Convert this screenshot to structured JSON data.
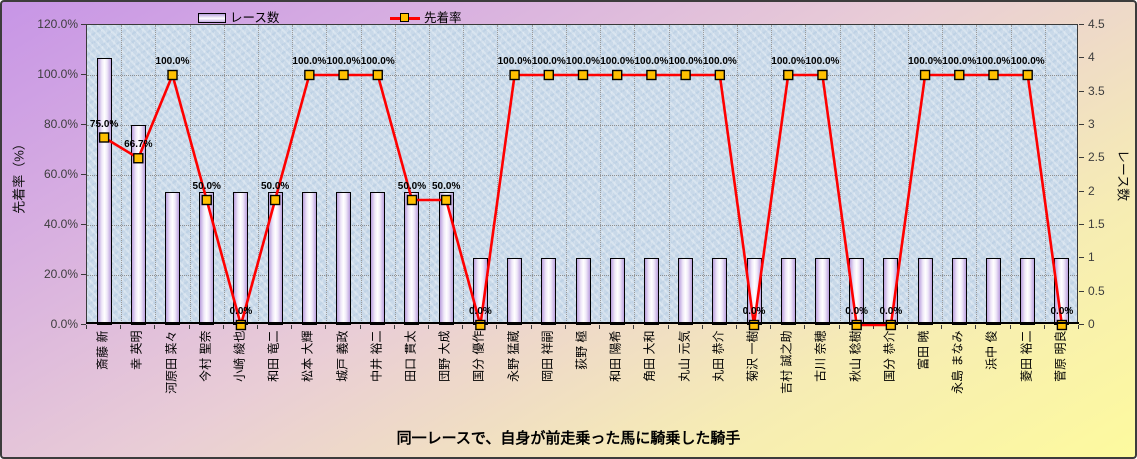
{
  "title": "同一レースで、自身が前走乗った馬に騎乗した騎手",
  "legend": {
    "races_label": "レース数",
    "rate_label": "先着率"
  },
  "axes": {
    "left_title": "先着率（%）",
    "right_title": "レース数",
    "left_ticks": [
      "120.0%",
      "100.0%",
      "80.0%",
      "60.0%",
      "40.0%",
      "20.0%",
      "0.0%"
    ],
    "right_ticks": [
      "4.5",
      "4",
      "3.5",
      "3",
      "2.5",
      "2",
      "1.5",
      "1",
      "0.5",
      "0"
    ]
  },
  "colors": {
    "line": "#ff0000",
    "marker_fill": "#ffc000",
    "marker_border": "#000000",
    "bar_edge": "#bba0de",
    "bar_center": "#ffffff",
    "bar_border": "#000000",
    "plot_bg": "#c9d9e9",
    "bg_top_left": "#c795e6",
    "bg_bottom_right": "#fdfa9e",
    "gridline": "#8f8f8f"
  },
  "chart_data": {
    "type": "bar+line combo",
    "title": "同一レースで、自身が前走乗った馬に騎乗した騎手",
    "categories": [
      "斎藤 新",
      "幸 英明",
      "河原田 菜々",
      "今村 聖奈",
      "小崎 綾也",
      "和田 竜二",
      "松本 大輝",
      "城戸 義政",
      "中井 裕二",
      "田口 貫太",
      "団野 大成",
      "国分 優作",
      "永野 猛蔵",
      "岡田 祥嗣",
      "荻野 極",
      "和田 陽希",
      "角田 大和",
      "丸山 元気",
      "丸田 恭介",
      "菊沢 一樹",
      "吉村 誠之助",
      "古川 奈穂",
      "秋山 稔樹",
      "国分 恭介",
      "富田 暁",
      "永島 まなみ",
      "浜中 俊",
      "菱田 裕二",
      "菅原 明良"
    ],
    "series": [
      {
        "name": "レース数",
        "type": "bar",
        "axis": "right",
        "values": [
          4,
          3,
          2,
          2,
          2,
          2,
          2,
          2,
          2,
          2,
          2,
          1,
          1,
          1,
          1,
          1,
          1,
          1,
          1,
          1,
          1,
          1,
          1,
          1,
          1,
          1,
          1,
          1,
          1
        ]
      },
      {
        "name": "先着率",
        "type": "line",
        "axis": "left",
        "unit": "%",
        "values": [
          75.0,
          66.7,
          100.0,
          50.0,
          0.0,
          50.0,
          100.0,
          100.0,
          100.0,
          50.0,
          50.0,
          0.0,
          100.0,
          100.0,
          100.0,
          100.0,
          100.0,
          100.0,
          100.0,
          0.0,
          100.0,
          100.0,
          0.0,
          0.0,
          100.0,
          100.0,
          100.0,
          100.0,
          0.0
        ],
        "point_labels": [
          "75.0%",
          "66.7%",
          "100.0%",
          "50.0%",
          "0.0%",
          "50.0%",
          "100.0%",
          "100.0%",
          "100.0%",
          "50.0%",
          "50.0%",
          "0.0%",
          "100.0%",
          "100.0%",
          "100.0%",
          "100.0%",
          "100.0%",
          "100.0%",
          "100.0%",
          "0.0%",
          "100.0%",
          "100.0%",
          "0.0%",
          "0.0%",
          "100.0%",
          "100.0%",
          "100.0%",
          "100.0%",
          "0.0%"
        ]
      }
    ],
    "left_axis": {
      "label": "先着率（%）",
      "min": 0,
      "max": 120,
      "step": 20,
      "format": "0.0%"
    },
    "right_axis": {
      "label": "レース数",
      "min": 0,
      "max": 4.5,
      "step": 0.5
    },
    "gridlines": {
      "horizontal": "dotted, every 20% of left axis",
      "vertical": "dotted, at each category boundary"
    },
    "legend_position": "top",
    "legend_entries": [
      "レース数",
      "先着率"
    ]
  }
}
